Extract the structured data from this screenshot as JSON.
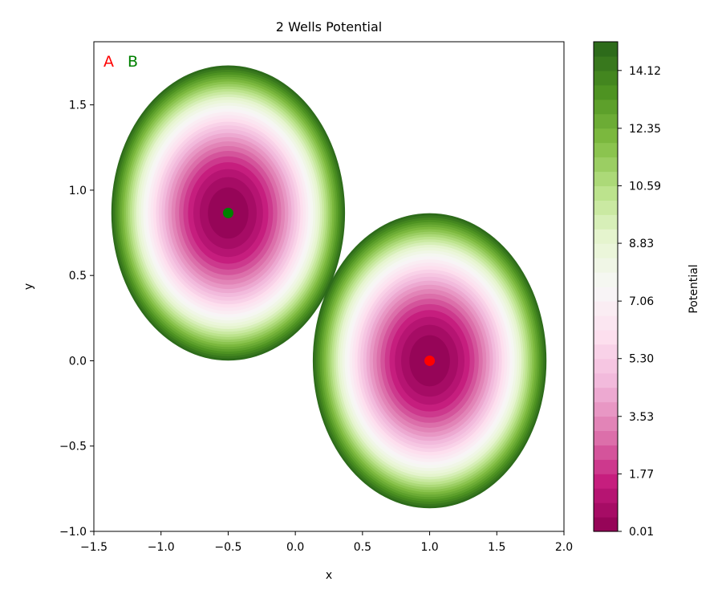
{
  "chart_data": {
    "type": "contour",
    "title": "2 Wells Potential",
    "xlabel": "x",
    "ylabel": "y",
    "xlim": [
      -1.5,
      2.0
    ],
    "ylim": [
      -1.0,
      1.87
    ],
    "xticks": [
      -1.5,
      -1.0,
      -0.5,
      0.0,
      0.5,
      1.0,
      1.5,
      2.0
    ],
    "xtick_labels": [
      "−1.5",
      "−1.0",
      "−0.5",
      "0.0",
      "0.5",
      "1.0",
      "1.5",
      "2.0"
    ],
    "yticks": [
      -1.0,
      -0.5,
      0.0,
      0.5,
      1.0,
      1.5
    ],
    "ytick_labels": [
      "−1.0",
      "−0.5",
      "0.0",
      "0.5",
      "1.0",
      "1.5"
    ],
    "grid": false,
    "colormap": "PiYG",
    "colorbar": {
      "label": "Potential",
      "min": 0.01,
      "max": 15.0,
      "levels": 34,
      "ticks": [
        0.01,
        1.77,
        3.53,
        5.3,
        7.06,
        8.83,
        10.59,
        12.35,
        14.12
      ],
      "tick_labels": [
        "0.01",
        "1.77",
        "3.53",
        "5.30",
        "7.06",
        "8.83",
        "10.59",
        "12.35",
        "14.12"
      ]
    },
    "wells": [
      {
        "center": [
          -0.5,
          0.866
        ],
        "x_radius": 0.87,
        "y_radius": 0.865,
        "max_potential": 15.0
      },
      {
        "center": [
          1.0,
          0.0
        ],
        "x_radius": 0.87,
        "y_radius": 0.865,
        "max_potential": 15.0
      }
    ],
    "markers": [
      {
        "label": "A",
        "x": 1.0,
        "y": 0.0,
        "color": "#ff0000"
      },
      {
        "label": "B",
        "x": -0.5,
        "y": 0.866,
        "color": "#008000"
      }
    ]
  }
}
